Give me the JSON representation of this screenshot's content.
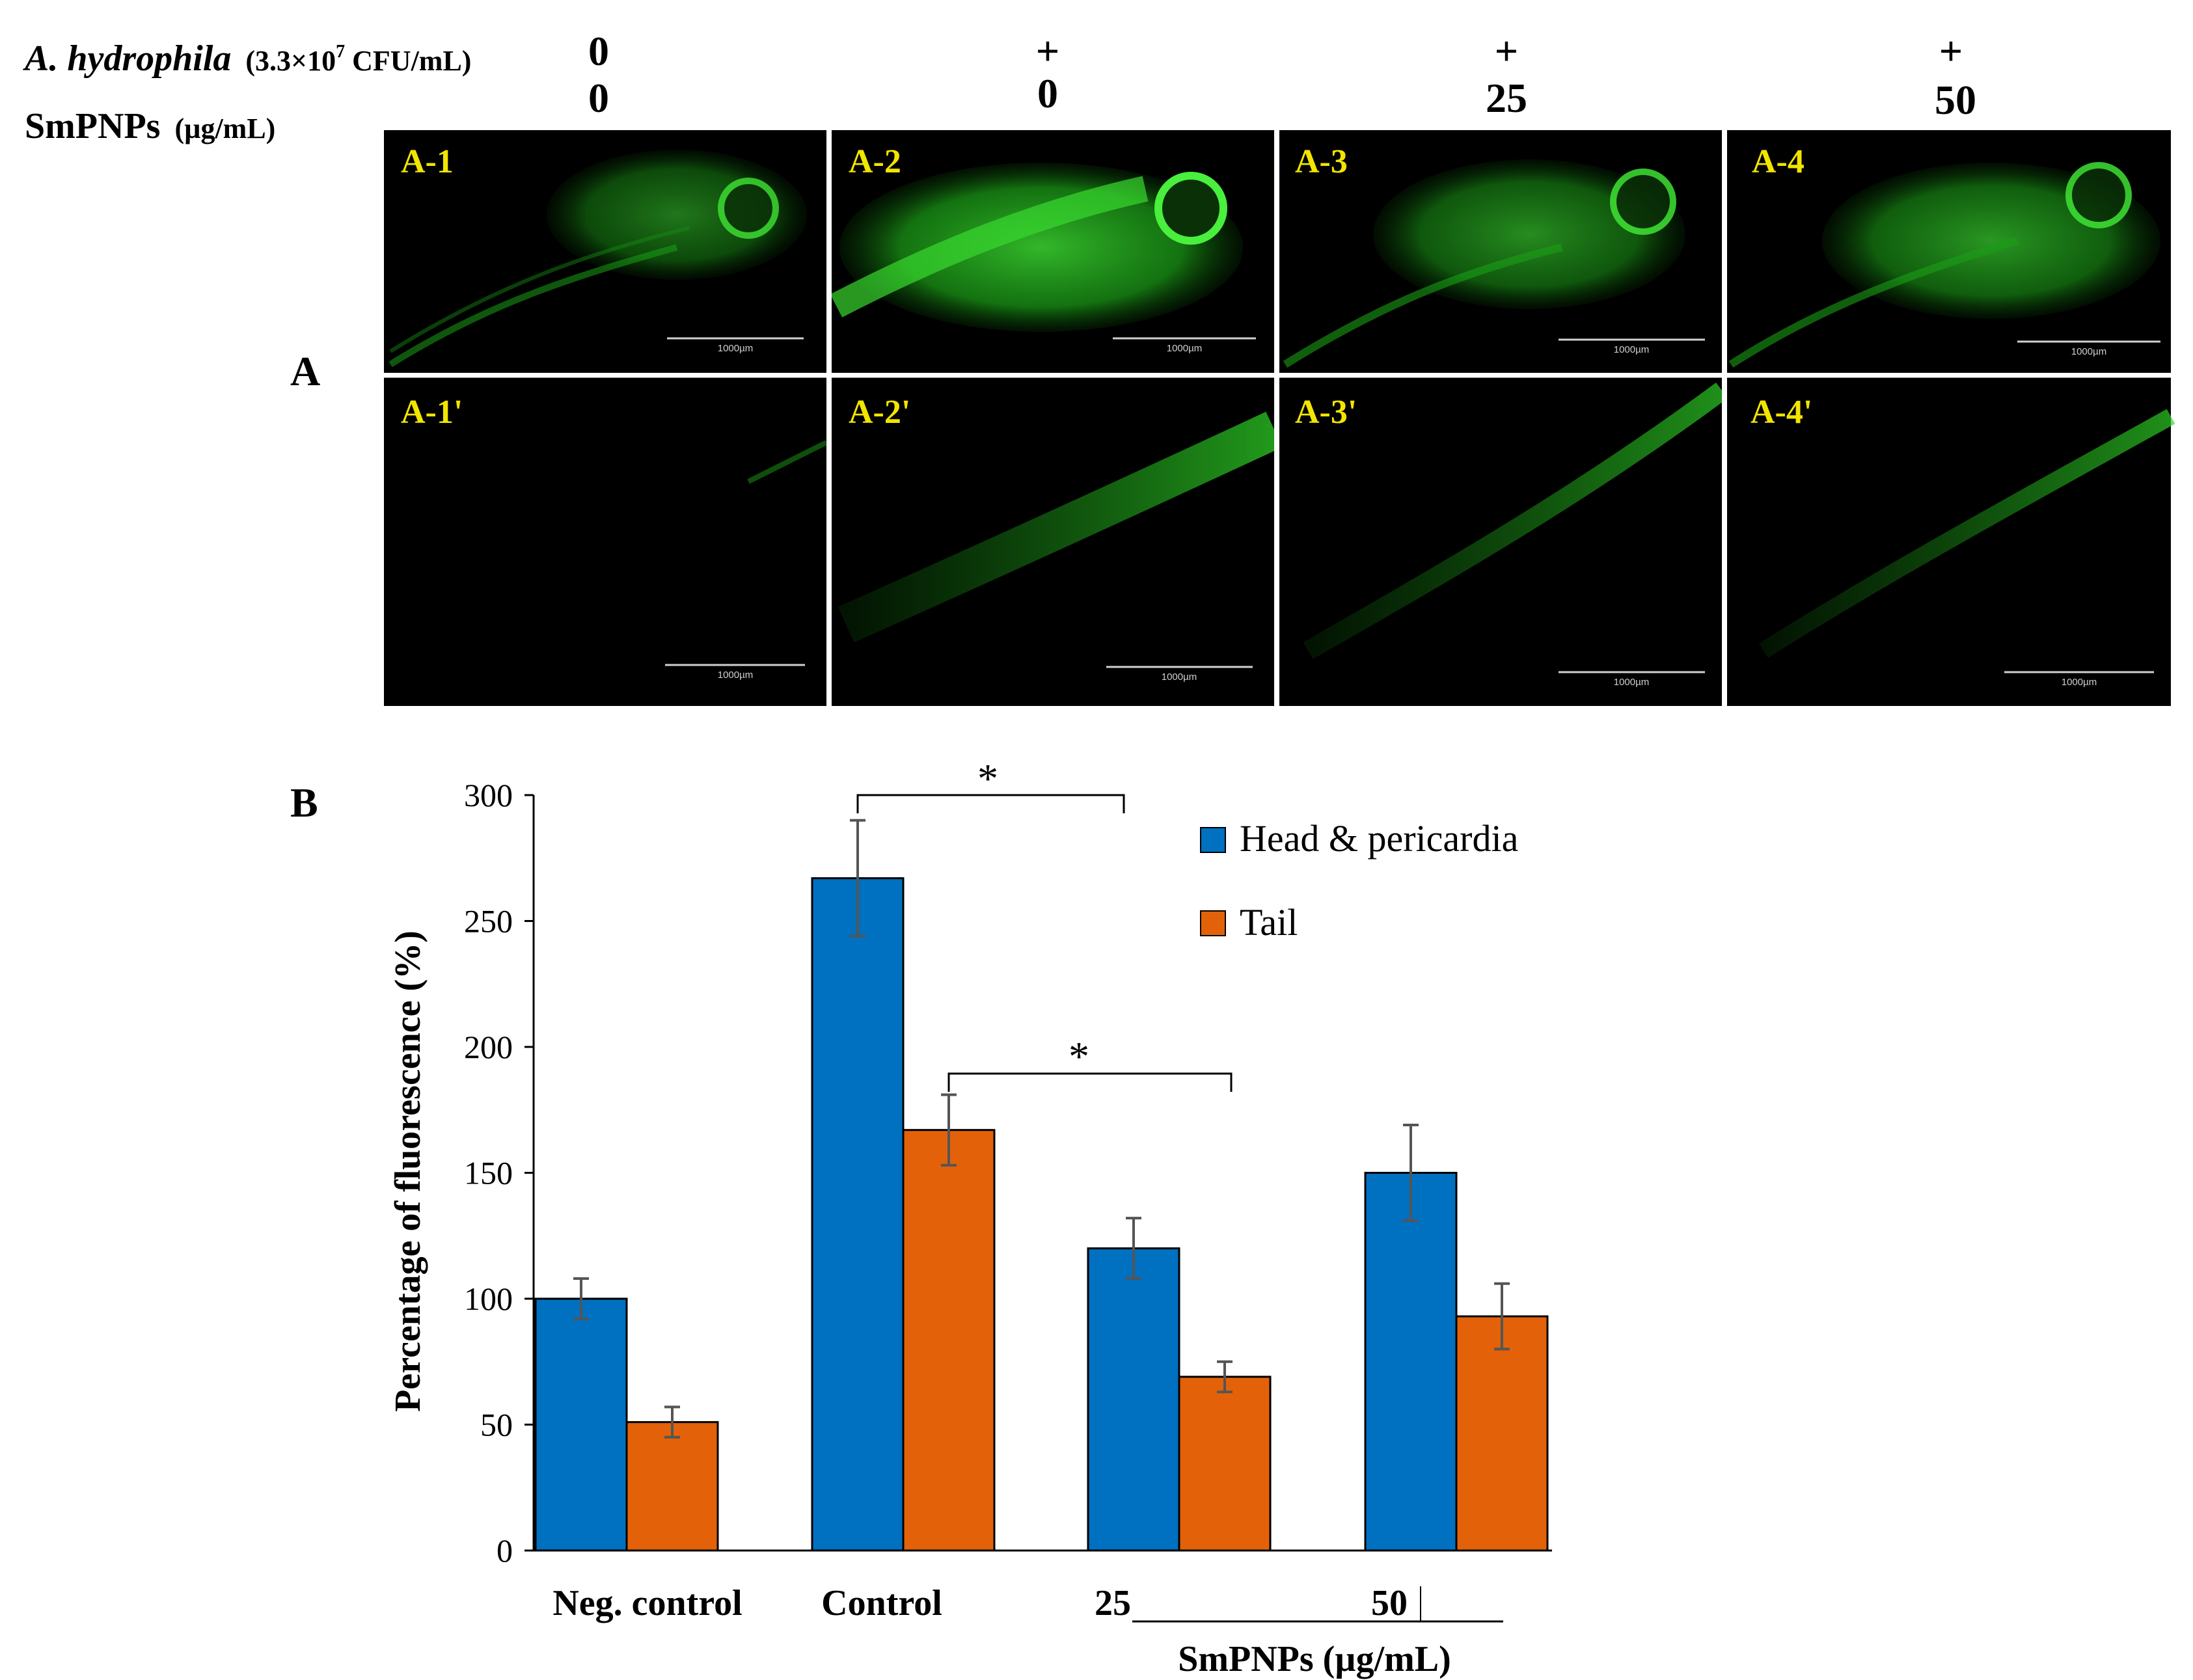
{
  "header": {
    "row1_label_italic": "A. hydrophila",
    "row1_label_rest": "(3.3×10",
    "row1_label_sup": "7",
    "row1_label_end": " CFU/mL)",
    "row2_label": "SmPNPs",
    "row2_unit": "(µg/mL)",
    "columns": [
      {
        "bacteria": "0",
        "dose": "0"
      },
      {
        "bacteria": "+",
        "dose": "0"
      },
      {
        "bacteria": "+",
        "dose": "25"
      },
      {
        "bacteria": "+",
        "dose": "50"
      }
    ]
  },
  "panel_a": {
    "label": "A",
    "scale_bar": "1000µm",
    "top_row": [
      "A-1",
      "A-2",
      "A-3",
      "A-4"
    ],
    "bottom_row": [
      "A-1'",
      "A-2'",
      "A-3'",
      "A-4'"
    ],
    "colors": {
      "background": "#000000",
      "fluorescence": "#22c61d",
      "label": "#f2e500"
    }
  },
  "panel_b": {
    "label": "B",
    "significance_marker": "*",
    "group_axis_label": "SmPNPs (µg/mL)"
  },
  "chart_data": {
    "type": "bar",
    "title": "",
    "categories": [
      "Neg. control",
      "Control",
      "25",
      "50"
    ],
    "series": [
      {
        "name": "Head & pericardia",
        "color": "#0070c0",
        "values": [
          100,
          267,
          120,
          150
        ],
        "errors": [
          8,
          23,
          12,
          19
        ]
      },
      {
        "name": "Tail",
        "color": "#e36209",
        "values": [
          51,
          167,
          69,
          93
        ],
        "errors": [
          6,
          14,
          6,
          13
        ]
      }
    ],
    "xlabel": "SmPNPs (µg/mL)",
    "ylabel": "Percentage of fluorescence (%)",
    "ylim": [
      0,
      300
    ],
    "yticks": [
      0,
      50,
      100,
      150,
      200,
      250,
      300
    ],
    "legend_position": "top-right",
    "grid": false,
    "annotations": [
      {
        "text": "*",
        "from": "Control / Head & pericardia",
        "to": "25 / Head & pericardia"
      },
      {
        "text": "*",
        "from": "Control / Tail",
        "to": "25 / Tail"
      }
    ]
  }
}
